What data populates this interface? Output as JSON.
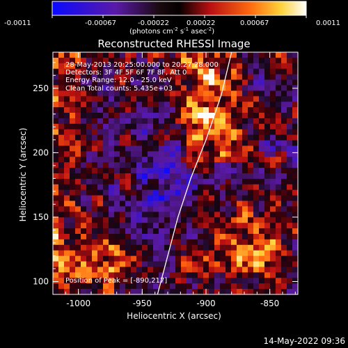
{
  "colorbar": {
    "ticks": [
      "-0.0011",
      "-0.00067",
      "-0.00022",
      "0.00022",
      "0.00067",
      "0.0011"
    ],
    "unit_label": "(photons cm",
    "unit_exp1": "-2",
    "unit_mid": " s",
    "unit_exp2": "-1",
    "unit_mid2": " asec",
    "unit_exp3": "-2",
    "unit_close": ")"
  },
  "footer": {
    "timestamp": "14-May-2022 09:36"
  },
  "chart_data": {
    "type": "heatmap",
    "title": "Reconstructed RHESSI Image",
    "xlabel": "Heliocentric X (arcsec)",
    "ylabel": "Heliocentric Y (arcsec)",
    "xlim": [
      -1020,
      -828
    ],
    "ylim": [
      90,
      278
    ],
    "x_ticks": [
      -1000,
      -950,
      -900,
      -850
    ],
    "y_ticks": [
      100,
      150,
      200,
      250
    ],
    "color_range": [
      -0.0011,
      0.0011
    ],
    "colormap": "blue-purple-black-red-yellow-white",
    "annotations": [
      "28-May-2013 20:25:00.000 to 20:27:28.000",
      "Detectors: 3F 4F 5F 6F 7F 8F, Att 0",
      "Energy Range: 12.0 - 25.0 keV",
      "Clean     Total counts: 5.435e+03"
    ],
    "peak_label": "Position of Peak = [-890,217]",
    "peak_position": [
      -890,
      217
    ],
    "limb_curve": {
      "x": [
        -938,
        -930,
        -922,
        -912,
        -900,
        -888,
        -880
      ],
      "y": [
        90,
        120,
        150,
        180,
        210,
        245,
        278
      ]
    }
  }
}
